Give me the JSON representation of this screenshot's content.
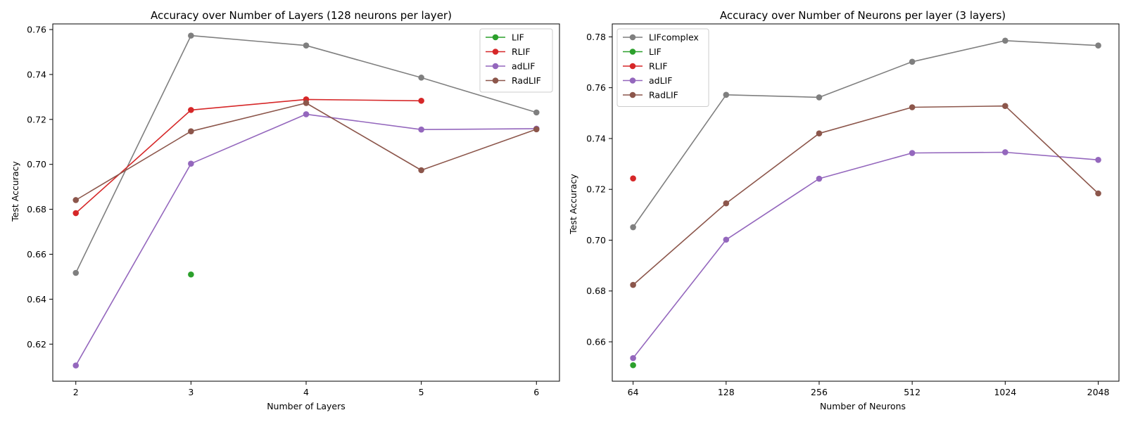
{
  "chart_data": [
    {
      "type": "line",
      "title": "Accuracy over Number of Layers (128 neurons per layer)",
      "xlabel": "Number of Layers",
      "ylabel": "Test Accuracy",
      "x_ticks": [
        "2",
        "3",
        "4",
        "5",
        "6"
      ],
      "y_ticks": [
        "0.62",
        "0.64",
        "0.66",
        "0.68",
        "0.70",
        "0.72",
        "0.74",
        "0.76"
      ],
      "xlim": [
        1.8,
        6.2
      ],
      "ylim": [
        0.6035,
        0.7625
      ],
      "grid": false,
      "legend_position": "top-right",
      "series": [
        {
          "name": "",
          "legend": false,
          "color": "#7f7f7f",
          "x": [
            2,
            3,
            4,
            5,
            6
          ],
          "y": [
            0.6517,
            0.7573,
            0.7529,
            0.7386,
            0.7231
          ]
        },
        {
          "name": "LIF",
          "legend": true,
          "color": "#2ca02c",
          "x": [
            3
          ],
          "y": [
            0.651
          ]
        },
        {
          "name": "RLIF",
          "legend": true,
          "color": "#d62728",
          "x": [
            2,
            3,
            4,
            5
          ],
          "y": [
            0.6783,
            0.7242,
            0.7289,
            0.7283
          ]
        },
        {
          "name": "adLIF",
          "legend": true,
          "color": "#9467bd",
          "x": [
            2,
            3,
            4,
            5,
            6
          ],
          "y": [
            0.6105,
            0.7003,
            0.7223,
            0.7155,
            0.7159
          ]
        },
        {
          "name": "RadLIF",
          "legend": true,
          "color": "#8c564b",
          "x": [
            2,
            3,
            4,
            5,
            6
          ],
          "y": [
            0.6841,
            0.7147,
            0.7273,
            0.6974,
            0.7156
          ]
        }
      ]
    },
    {
      "type": "line",
      "title": "Accuracy over Number of Neurons per layer (3 layers)",
      "xlabel": "Number of Neurons",
      "ylabel": "Test Accuracy",
      "x_ticks": [
        "64",
        "128",
        "256",
        "512",
        "1024",
        "2048"
      ],
      "y_ticks": [
        "0.66",
        "0.68",
        "0.70",
        "0.72",
        "0.74",
        "0.76",
        "0.78"
      ],
      "x_scale": "log2",
      "xlim": [
        54.8,
        2390
      ],
      "ylim": [
        0.6445,
        0.7851
      ],
      "grid": false,
      "legend_position": "top-left",
      "series": [
        {
          "name": "LIFcomplex",
          "legend": true,
          "color": "#7f7f7f",
          "x": [
            64,
            128,
            256,
            512,
            1024,
            2048
          ],
          "y": [
            0.7051,
            0.7572,
            0.7562,
            0.7702,
            0.7785,
            0.7766
          ]
        },
        {
          "name": "LIF",
          "legend": true,
          "color": "#2ca02c",
          "x": [
            64
          ],
          "y": [
            0.6508
          ]
        },
        {
          "name": "RLIF",
          "legend": true,
          "color": "#d62728",
          "x": [
            64
          ],
          "y": [
            0.7243
          ]
        },
        {
          "name": "adLIF",
          "legend": true,
          "color": "#9467bd",
          "x": [
            64,
            128,
            256,
            512,
            1024,
            2048
          ],
          "y": [
            0.6536,
            0.7002,
            0.7242,
            0.7343,
            0.7346,
            0.7316
          ]
        },
        {
          "name": "RadLIF",
          "legend": true,
          "color": "#8c564b",
          "x": [
            64,
            128,
            256,
            512,
            1024,
            2048
          ],
          "y": [
            0.6824,
            0.7145,
            0.742,
            0.7523,
            0.7528,
            0.7184
          ]
        }
      ]
    }
  ]
}
